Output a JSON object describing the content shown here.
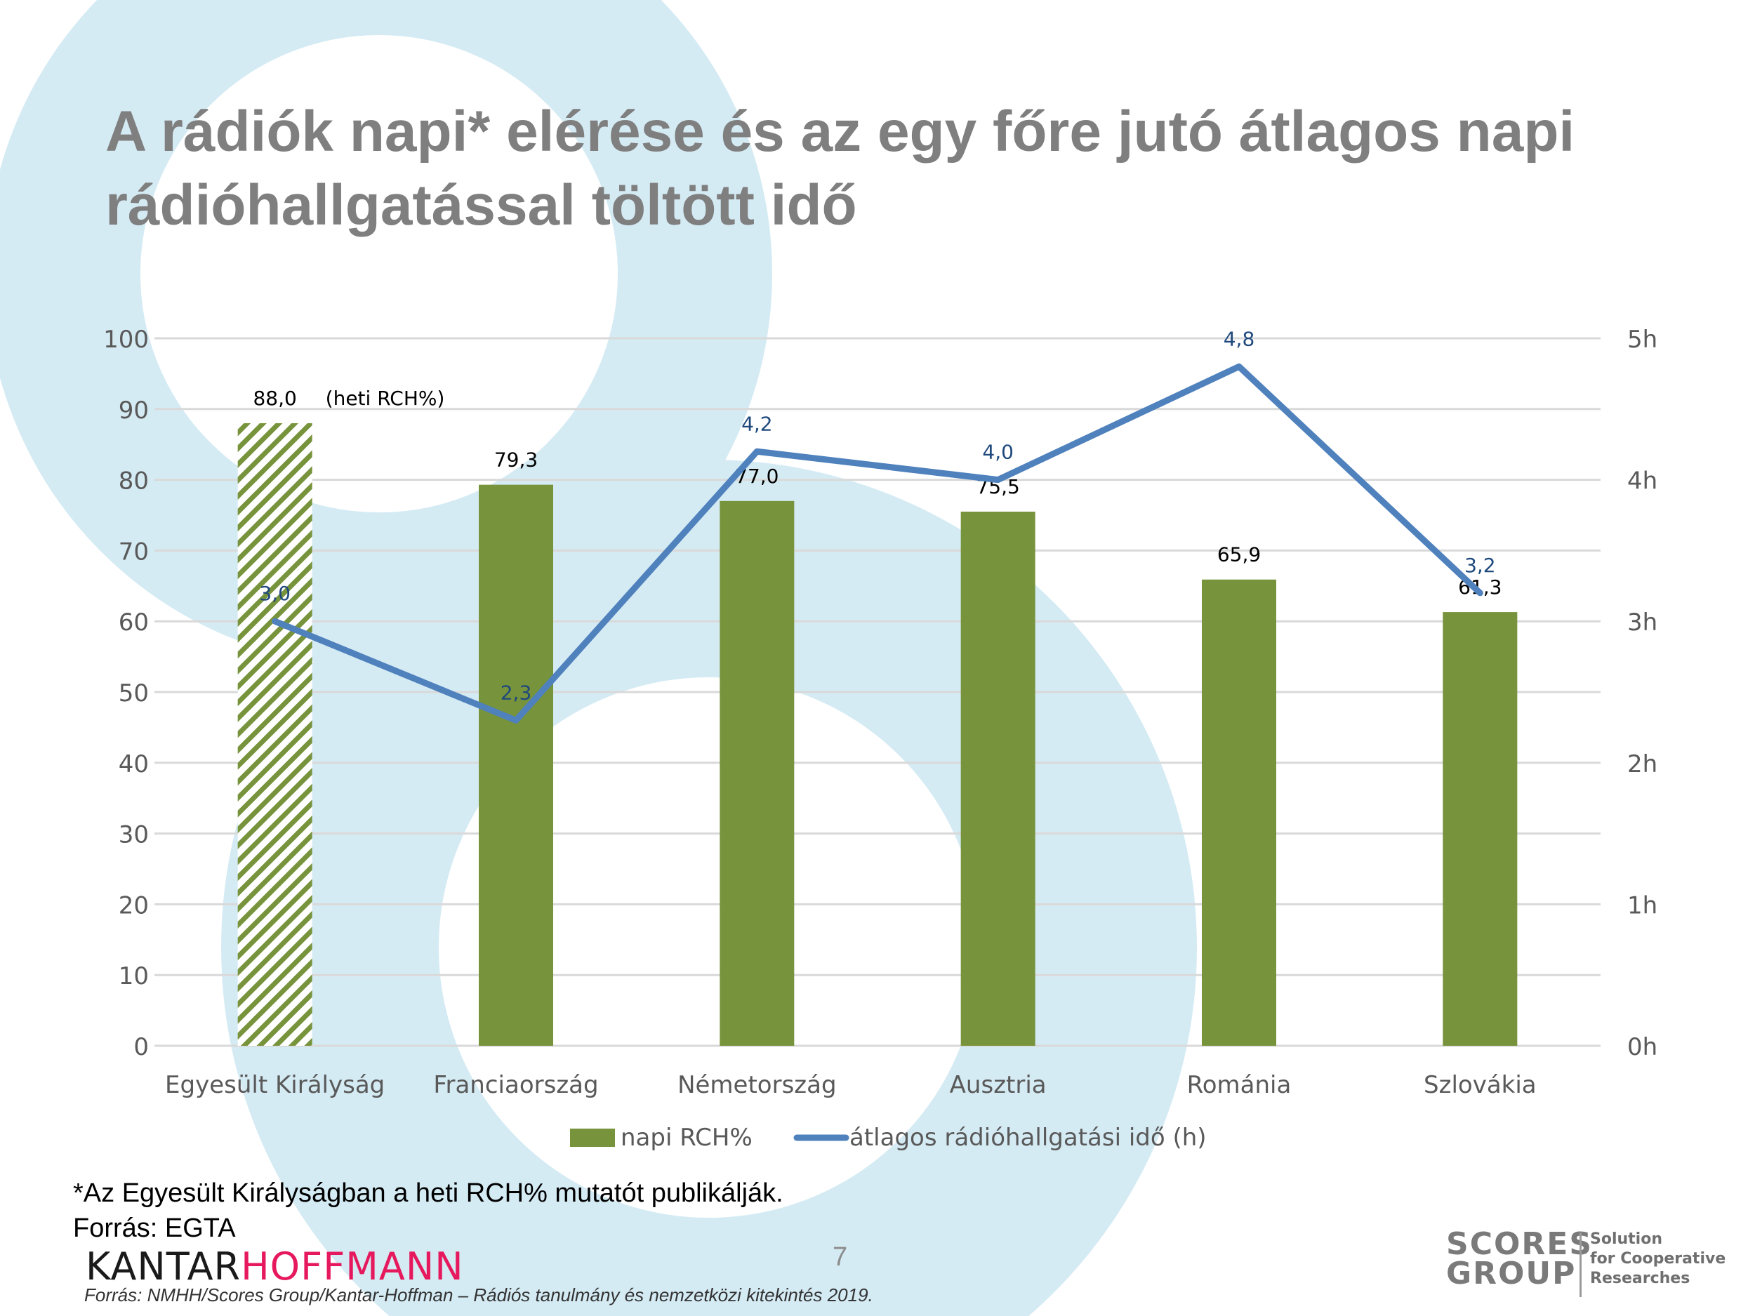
{
  "title": {
    "line1": "A rádiók napi* elérése és az egy főre jutó átlagos napi",
    "line2": "rádióhallgatással töltött idő"
  },
  "colors": {
    "bar": "#77933c",
    "line": "#4f81bd",
    "line_label": "#1f497d",
    "background_circles": "#d5ebf4",
    "title": "#7f7f7f"
  },
  "chart_data": {
    "type": "bar",
    "categories": [
      "Egyesült Királyság",
      "Franciaország",
      "Németország",
      "Ausztria",
      "Románia",
      "Szlovákia"
    ],
    "series": [
      {
        "name": "napi RCH%",
        "type": "bar",
        "axis": "left",
        "values": [
          88.0,
          79.3,
          77.0,
          75.5,
          65.9,
          61.3
        ],
        "labels": [
          "88,0",
          "79,3",
          "77,0",
          "75,5",
          "65,9",
          "61,3"
        ],
        "hatched_index": 0
      },
      {
        "name": "átlagos rádióhallgatási idő (h)",
        "type": "line",
        "axis": "right",
        "values": [
          3.0,
          2.3,
          4.2,
          4.0,
          4.8,
          3.2
        ],
        "labels": [
          "3,0",
          "2,3",
          "4,2",
          "4,0",
          "4,8",
          "3,2"
        ]
      }
    ],
    "annotations": [
      "(heti RCH%)"
    ],
    "y_left": {
      "min": 0,
      "max": 100,
      "step": 10,
      "ticks": [
        "0",
        "10",
        "20",
        "30",
        "40",
        "50",
        "60",
        "70",
        "80",
        "90",
        "100"
      ]
    },
    "y_right": {
      "min": 0,
      "max": 5,
      "step": 1,
      "ticks": [
        "0h",
        "1h",
        "2h",
        "3h",
        "4h",
        "5h"
      ]
    },
    "grid": true,
    "legend_position": "bottom"
  },
  "footnote": {
    "line1": "*Az Egyesült Királyságban a heti RCH% mutatót publikálják.",
    "line2": "Forrás: EGTA"
  },
  "page_number": "7",
  "source_small": "Forrás: NMHH/Scores Group/Kantar-Hoffman – Rádiós tanulmány és nemzetközi kitekintés 2019.",
  "logos": {
    "kantar_part1": "KANTAR",
    "kantar_part2": "HOFFMANN",
    "scores_line1": "SCORES",
    "scores_line2": "GROUP",
    "scores_tag1": "Solution",
    "scores_tag2": "for Cooperative",
    "scores_tag3": "Researches"
  }
}
